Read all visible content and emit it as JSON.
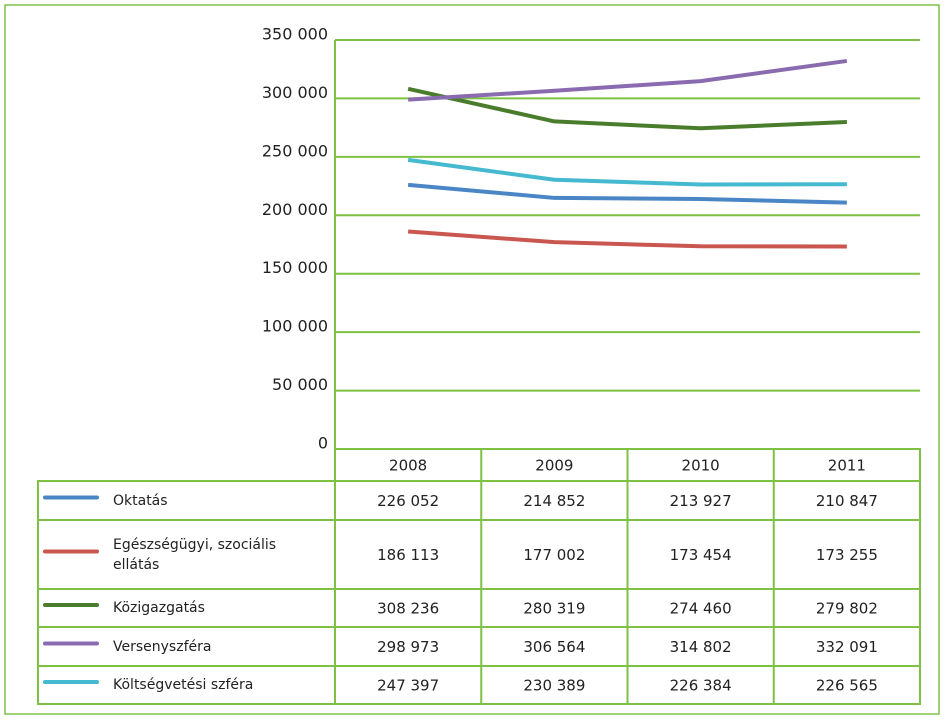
{
  "chart_data": {
    "type": "line",
    "categories": [
      "2008",
      "2009",
      "2010",
      "2011"
    ],
    "series": [
      {
        "name": "Oktatás",
        "color": "#4a86c5",
        "values": [
          226052,
          214852,
          213927,
          210847
        ],
        "value_labels": [
          "226 052",
          "214 852",
          "213 927",
          "210 847"
        ]
      },
      {
        "name": "Egészségügyi, szociális ellátás",
        "color": "#c9574f",
        "values": [
          186113,
          177002,
          173454,
          173255
        ],
        "value_labels": [
          "186 113",
          "177 002",
          "173 454",
          "173 255"
        ]
      },
      {
        "name": "Közigazgatás",
        "color": "#4a7d2b",
        "values": [
          308236,
          280319,
          274460,
          279802
        ],
        "value_labels": [
          "308 236",
          "280 319",
          "274 460",
          "279 802"
        ]
      },
      {
        "name": "Versenyszféra",
        "color": "#8a6bb0",
        "values": [
          298973,
          306564,
          314802,
          332091
        ],
        "value_labels": [
          "298 973",
          "306 564",
          "314 802",
          "332 091"
        ]
      },
      {
        "name": "Költségvetési szféra",
        "color": "#45b9cf",
        "values": [
          247397,
          230389,
          226384,
          226565
        ],
        "value_labels": [
          "247 397",
          "230 389",
          "226 384",
          "226 565"
        ]
      }
    ],
    "ylim": [
      0,
      350000
    ],
    "yticks": [
      0,
      {
        "value": 50000,
        "label": "50 000"
      },
      {
        "value": 100000,
        "label": "100 000"
      },
      {
        "value": 150000,
        "label": "150 000"
      },
      {
        "value": 200000,
        "label": "200 000"
      },
      {
        "value": 250000,
        "label": "250 000"
      },
      {
        "value": 300000,
        "label": "300 000"
      },
      {
        "value": 350000,
        "label": "350 000"
      }
    ],
    "grid": true,
    "grid_color": "#7dc242"
  }
}
